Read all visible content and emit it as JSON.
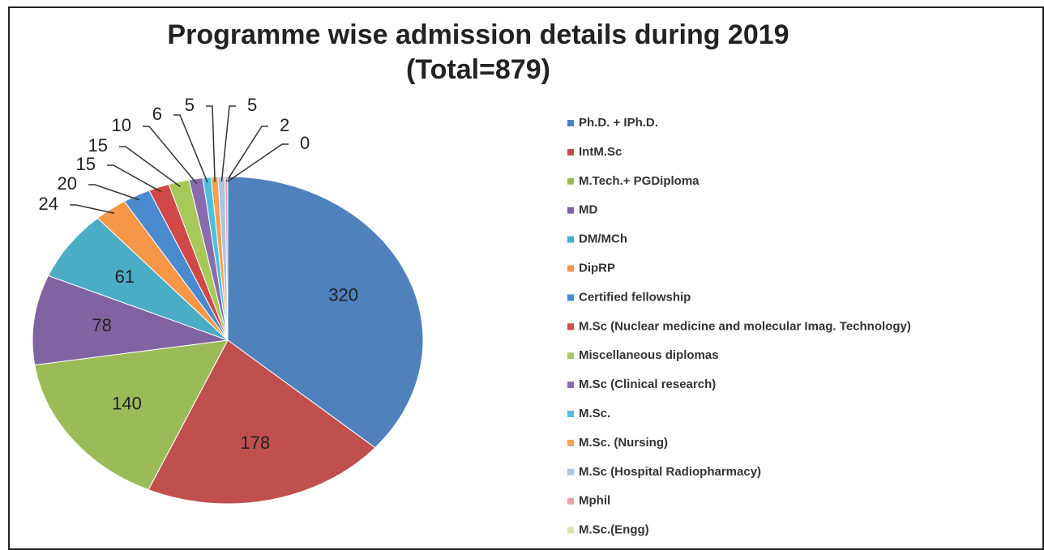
{
  "chart_data": {
    "type": "pie",
    "title": "Programme wise admission details during 2019",
    "subtitle": "(Total=879)",
    "categories": [
      "Ph.D. + IPh.D.",
      "IntM.Sc",
      "M.Tech.+ PGDiploma",
      "MD",
      "DM/MCh",
      "DipRP",
      "Certified fellowship",
      "M.Sc (Nuclear medicine and molecular Imag. Technology)",
      "Miscellaneous diplomas",
      "M.Sc (Clinical research)",
      "M.Sc.",
      "M.Sc. (Nursing)",
      "M.Sc (Hospital Radiopharmacy)",
      "Mphil",
      "M.Sc.(Engg)"
    ],
    "values": [
      320,
      178,
      140,
      78,
      61,
      24,
      20,
      15,
      15,
      10,
      6,
      5,
      5,
      2,
      0
    ],
    "colors": [
      "#4f81bd",
      "#c0504d",
      "#9bbb59",
      "#8064a2",
      "#4bacc6",
      "#f79646",
      "#4a8bd0",
      "#d04848",
      "#a6c95a",
      "#8a6bb0",
      "#4fc0dc",
      "#f9a050",
      "#a9c4e4",
      "#e6a5a5",
      "#d5e5b0"
    ],
    "legend": "right"
  }
}
